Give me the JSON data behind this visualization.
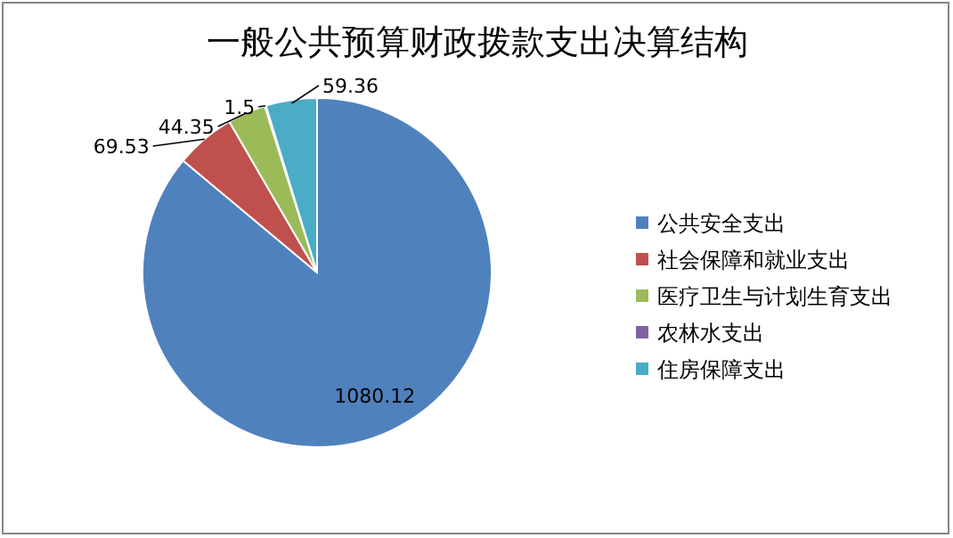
{
  "chart_data": {
    "type": "pie",
    "title": "一般公共预算财政拨款支出决算结构",
    "categories": [
      "公共安全支出",
      "社会保障和就业支出",
      "医疗卫生与计划生育支出",
      "农林水支出",
      "住房保障支出"
    ],
    "values": [
      1080.12,
      69.53,
      44.35,
      1.5,
      59.36
    ],
    "colors": [
      "#4f81bd",
      "#c0504d",
      "#9bbb59",
      "#8064a2",
      "#4bacc6"
    ],
    "data_labels": true,
    "legend": "right"
  }
}
